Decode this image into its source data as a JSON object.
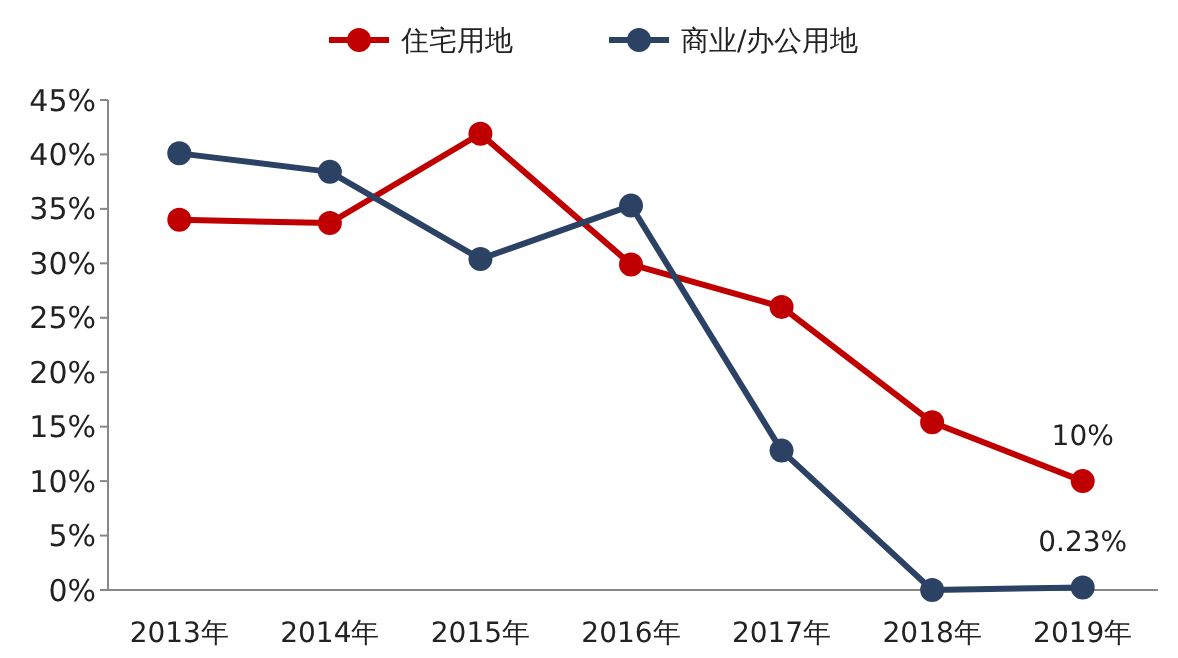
{
  "chart_data": {
    "type": "line",
    "categories": [
      "2013年",
      "2014年",
      "2015年",
      "2016年",
      "2017年",
      "2018年",
      "2019年"
    ],
    "series": [
      {
        "name": "住宅用地",
        "color": "#c00000",
        "values": [
          34,
          33.7,
          41.9,
          29.9,
          26,
          15.4,
          10
        ],
        "value_labels": [
          null,
          null,
          null,
          null,
          null,
          null,
          "10%"
        ]
      },
      {
        "name": "商业/办公用地",
        "color": "#2b4264",
        "values": [
          40.1,
          38.4,
          30.4,
          35.3,
          12.8,
          0,
          0.23
        ],
        "value_labels": [
          null,
          null,
          null,
          null,
          null,
          null,
          "0.23%"
        ]
      }
    ],
    "ylim": [
      0,
      45
    ],
    "yticks": [
      {
        "value": 0,
        "label": "0%"
      },
      {
        "value": 5,
        "label": "5%"
      },
      {
        "value": 10,
        "label": "10%"
      },
      {
        "value": 15,
        "label": "15%"
      },
      {
        "value": 20,
        "label": "20%"
      },
      {
        "value": 25,
        "label": "25%"
      },
      {
        "value": 30,
        "label": "30%"
      },
      {
        "value": 35,
        "label": "35%"
      },
      {
        "value": 40,
        "label": "40%"
      },
      {
        "value": 45,
        "label": "45%"
      }
    ],
    "grid": false,
    "legend": "top",
    "marker": "circle",
    "line_style": "solid"
  }
}
